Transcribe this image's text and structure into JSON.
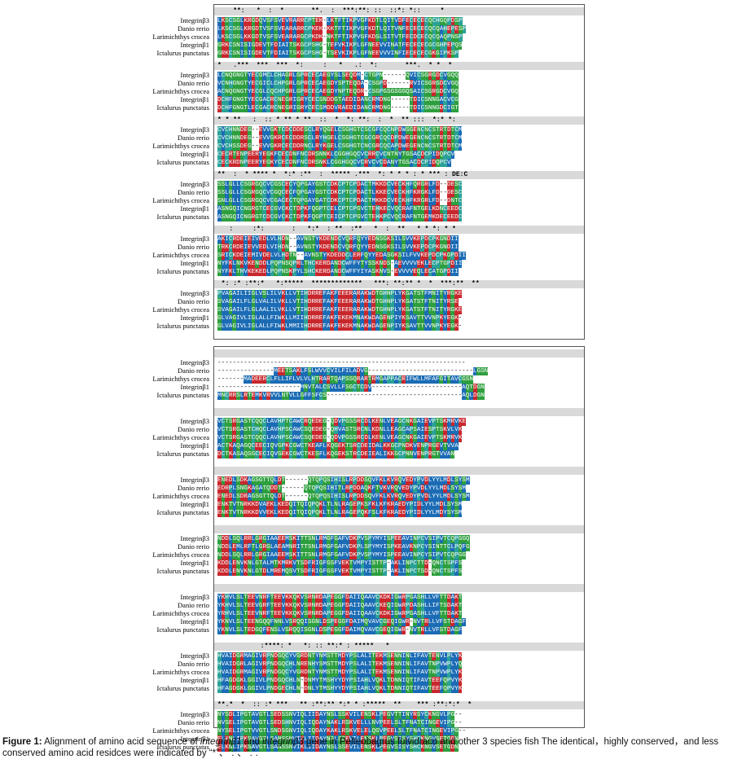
{
  "species": [
    "Integrinβ3",
    "Danio rerio",
    "Larimichthys crocea",
    "Integrinβ1",
    "Ictalurus punctatus"
  ],
  "colors": {
    "identical": "#c8272d",
    "conserved": "#2e9f3e",
    "similar": "#1b6cb5",
    "weak": "#2aa198",
    "consensus_bg": "#d9d9d9"
  },
  "panel1": {
    "blocks": [
      {
        "consensus": "    **:   *  :  *       **.  :  ***:**: ::  ::*: *::     * ",
        "rows": [
          "LKSCSGLKRGDQVSFSVEVRARRCPTEK-LKTFTIKPVGFKDTLQITVDFECECECQCHGQPDSP",
          "LKSCSGLKRGDTVSFSVEARARRCPKEK-KKTFTIKPVGFKDTLQITVNFECECECQCQAHEPESP",
          "LKSCSGLKKGDTVSFSVEARARGCPKDK-NKTFTIKPVGFKDSLSITVTFECDCECQCQAQPNSP",
          "GRKCSNISIGDEVTFDIAITSKGCPSHG-TEFVKIKPLGFNEEVVINATFECECECGCGHPEPQS",
          "GRKCSNISIGDEVTFDIAITSKGCPSHG-TSEVKIKPLGFNEEVVVINFIECECECGKGIPKSP"
        ]
      },
      {
        "consensus": "*   .***  ***  ***  *:     :   *   .:  *:       ***.  * *  * ",
        "rows": [
          "LCNQGNGTYECGMCLCHAGRLGPRCECAEGYSLSEQDM-CTGPN------QVICSGRGDCVGQQ",
          "VCNHGNGTYECGICLCHPGRLGPRCECAEGDYSPTEQDA-CSGPD------RVICSGRGDCVGQ",
          "ACNQGNGTYECGLCQCHPGRLGPRCECAEGDYNPTEQDR-CSGPGSGSGGQSAICSGRGDCVGQ",
          "DCHFGNGTYECGACRCNEGRIGRYCECSNDDGTAEDIDANCRMDNG-----TDICSNNGACVCG",
          "DCHFGNGTLECGACRCNEGRIGRYCECSMDDVRAEDIDANCRMDNG-----TDICSNNGDCIGT"
        ]
      },
      {
        "consensus": "* * **   :  :: * ** * **  ::  *  *: **:  :  *  ** :::  *:* *: ",
        "rows": [
          "CVCHNNDEG--EVVGKTCDCDDESCLRYQGELCSGHGTCSCGFCQCNPDWSGENCNCSTRTDTCM",
          "CVCHNNDEG--EVVGKRCECDDRSCLRYHGELCSGHGTCGCGRCQCDPDWEGENCNCSTRTDTCM",
          "CVCHSSDEG--EVVGKRCECDDRNCLRYKGELCSGHGTCNCGRCQCAPDWEGENCNCSTRTDTCM",
          "CECRTENPEERYEGKFCECDNFNCDRSNNKLCGGHGQCVCRRCVCNTNYTGSACDCPIDQPCV",
          "CECKRDNPEERYEGKYCECDNFNCDRSNKLCGGHGQCVCRVCVCDANYTGSACDCPIDQPCV"
        ]
      },
      {
        "consensus": "**  :  * **** *  *:* :**  :  ***** .***  *: * * * : * *** : DE:C",
        "rows": [
          "SSLGLLCSGRGQCVCGSCECYQPGAYGSTCDKCPTCPDACTMKKDCVECKHFQRGRLFD--DESC",
          "SSLGLLCSGRGQCVCGQCECFQPGAYGSTCDKCPTCPDACTLKKECVECKHFKRGKLFD--DESC",
          "SNLGLLCSGRGQCVCGACECTQPGAYGATCDKCPTCPDACTMKKDCVECKHFKRGRLFD--DNTC",
          "ASNGQICNGRGTCECGVCKCTDPKFQGPTCELCPTCPGVCTEHKECVQCRAFNTGELKDNCEEDC",
          "ASNGQICNGRGTCDCGVCKCTDPKFQGPTCEICPTCPGVCTEHKPCVQCRAFNTGEMKDECEEDC"
        ]
      },
      {
        "consensus": "   :     :*:       :   *:*  : **  :**   *  :  **   * * *: * *",
        "rows": [
          "AKICRDEIEIVEDLVLHDN--AVNSTYKDENDCVQRFQYYEDNSGKSILSVVKEPDCPKGNDII",
          "TRKCRDEIEVVEDLVIHDN--AVNSTYKDENDCVQRFQYYEDNSGKSILSVVKEPDCPKGNDII",
          "SRICKDEIEMIVDELVLHDTN--AVNSTYKDEDDCLERFQYYEDASGKSILFVVKEPDCPKGPDII",
          "NYFKLNKVKENDDLPQPNSQPRLTHCKERDANDCWFFYTYSSKNDS-AEVVVVEKLECPTGPDII",
          "NYFKLTHVKEKEDLPQPNSKPYLSHCKERDANDCWFFYIYASKNVS-EVVVVEQLECATGPDII"
        ]
      },
      {
        "consensus": " *: :* :**:*   *:*****  *************   ***: **:** *  *  ***:**  **",
        "rows": [
          "PVAGAILIIGLVSLILVKLLVTIHDRREFAKFEEERARAKWDTGHNPLYKGATSTFMNITYRGKE",
          "SVAGAILFLGLVALILVKLLVTIHDRREFAKFEEERARAKWDTGHNPLYKGATSTFTNITYRSE",
          "SVAGAILFLGLAALILVKLLVTIHDRREFAKFEEERARAKWDTGHNPLYKGATSTFTNITYRGKE",
          "GLVAGIVLIGLALLFIWKLLMIIHDRREFAKFEKEKMNAKWDAGENPIYKSAVTTVVNPKYEGK-",
          "GLVAGIVLIGLALLFIWKLMMIIHDRREFAKFEKEKMNAKWDAGENPIYKSAVTTVVNPKYEGK-"
        ]
      }
    ]
  },
  "panel2": {
    "blocks": [
      {
        "consensus": "",
        "rows": [
          "------------------------------------------------------------------",
          "---------------MEETSAKLFSLWVVCVILFILADVG----------------------------LGSN",
          "-------MADEERCLFLLIFLVLVLHTRARTQAPSSQRARTRMGAPPACRIFWLLMFAFGITAVCGSN",
          "----------------------MNVTALCSVLLFSGCTCDV------------------------AQTDGN",
          "MNCRRSLRTEMKVRVVLNTVLLGFFSFCS------------------------------------AQLDGN"
        ]
      },
      {
        "consensus": "",
        "rows": [
          "VCTSRGASTCQQCLAVHPTCAWCRQEDEG-QDVPGSSRCDLKENLVEAGCNKGAIEVPTSKMRVKE",
          "VCTSRGASTCHQCLAVHPSCAWCSQEDEG-QHVASTSRCNLKDNLLEAGCAPSAIESPTSKVLVK",
          "VCTSRGASTCQQCLAVHPSCAWCSQEDEG-QDVPGSSRCDLKENLVEAGCNKGAIEVPTSKMRVK",
          "ACTKAQAGQCEECIQVGPKCGWCTKEAFLKQGEKTSRCDEIDALKKGCPNDKVENPRGEVTVVA",
          "DCTKASAQSGCECIQVGEKCGWCTKESFLKQGEKSTRCDEIEALIKKGCPNNVENPRGTVVAN"
        ]
      },
      {
        "consensus": "",
        "rows": [
          "ENEDLSDKAGSGTTQLDT------QTQPQSIHISLRPDDSQVFKLKVRQVEDYPVDLYYLMDLSYSM",
          "EDRPLSNGKAGATQDDT------QTQPQSIHITLRPDDAQKFTVKVRQVEDYPVDLYYLMDLSYSM",
          "ENEDLSDRAGSGTTQLDT------QTQPQSIHISLRPDDSQVFKLKVRQVEDYPVDLYYLMDLSYSM",
          "ENKTVTNRKKDVAEKLKEDQITQIQPQKLTLNLRAGEPKSFKLKFKRAEDYPIDLYYLMDLSYSM",
          "ENKTVTNRKKDVVEKLKEDQITQIQPQKLTLNLRAGEPQKFSLKFKRAEDYPIDLYYLMDYSYSM"
        ]
      },
      {
        "consensus": "",
        "rows": [
          "NDDLSQLRRLGRGIAAEEMSKITTSNLRMGFGAFVDKPVSPYMYISPEEAVINPCVSIPVTCQPGGQ",
          "NDDLEMLRFTLGRGLAEAMNRITTSNLRMGFGAFVDKPLSPYMYISPKEAVKNPCYSINTTCLPQFG",
          "NDDLSQLRRLGRGIAAEEMSKITTSNLRMGFGAFVDKPVSPYMYISPEEAVINPCYSIPVTCQPGG",
          "KDDLENVKNLGTALMTKMRKVTSDFRIGFGSFVEKTVMPYISTTP-AKLINPCTTD-QNCTSPFS",
          "KDDLENVKNLGTDLMREMQSVTSDFRIGFGSFVEKTVMPYISTTP-AKLINPCTSD-QNCTSPFS"
        ]
      },
      {
        "consensus": "",
        "rows": [
          "YKHVLSLTEEVNRFTEEVKKQKVSRNRDAPEGGFDAIIQAAVCKDKIGWRPGASHLLVFTTDAKT",
          "YKHVLSLTEEVGRFTEEVKKQKVSRNRDAPEGGFDAIIQAAVCKEQIGWRPDASHLLIFTSDAKT",
          "YRHVLSLTEEVNRFTEEVKKQKVSRNRDAPEGGFDAIIQAAVCKDKIGWRPGASHLLVFTTDAKT",
          "YKNVLSLTEENGQQFNNLVSRQQISGNLDSPEGGFDAIMQVAVCGEQIGWR-NVTRLLVFSTDAGF",
          "YKNVLSLTEDGQFENSLVSRQQISGNLDSPEGGFDAIMQVAVCGEQIGWR-NVTRLLVFSTDAGF"
        ]
      },
      {
        "consensus": "           :****: *   *: :: **:* : *****   * ",
        "rows": [
          "HVAIDGRMAGIVRPNDGQCYVGRDNTYNMSTTMDYPSLALITEKMSENNINLIFAVTENVLPLYK",
          "HVAIDGRLAGIVRPNDGQCHLNRENHYSMSTTMDYPSLALITEKMSENNINLIFAVTNPVWPLYQ",
          "HVAIDGRMAGIVRPNDGQCYVGRDNTYNMSTTMDYPSLALITEKMSENNINLIFAVTNPVWPLYK",
          "HFAGDGKLGGIVLPNDGQCHLN-DNMYTMSHYYDYPSIAHLVQKLTDNNIQTIFAVTEEFQPVYK",
          "HFAGDGKLGGIVLPNDGECHLN-DNLYTMSHYYDYPSIAHLVQKLTDNNIQTIFAVTEEFQPVYK"
        ]
      },
      {
        "consensus": "**.*  *  :: :* ***   ** :**:** *:* * :*****  **    *** :**:*:*  *",
        "rows": [
          "NYSDLIPGTAVGTLSEDSSNVIQLIIDAYNSLSSKVILENSKLPEGVTTINYRSYCKNGVLPG--",
          "NVSELIPGTAVGTLSEDSHNVIQLIQDAYNAKLRSKVELLLNVPEELSLTFNATCINGEVIPG--",
          "NYSELIPGTVVGTLSNDSGNVIQLIQDAYKAKLRSKVELELQGVPEELSLTFNATCINGEVIPG--",
          "ELKNLIPKSAVGTLSANSSNVIKLIIDAYNSLSSEVILENSKLPEGVSISYSHCKNGVSETGDN",
          "ELKNLIPKSAVGTLSANSSNVIKLIIDAYNSLSSEVILENSKLPEGVSISYSHCKNGVSETGDN"
        ]
      }
    ]
  },
  "caption": {
    "fig_label": "Figure 1:",
    "text_a": " Alignment of amino acid sequence of  ",
    "gene1": "integrinβ1",
    "text_b": " and ",
    "gene2": "integrinβ3",
    "text_c": " gene in Pelteobagrus fulvidraco and other 3 species fish The identical，highly conserved，and less conserved amino acid residces were indicated by “*”、“:”、“.”."
  }
}
